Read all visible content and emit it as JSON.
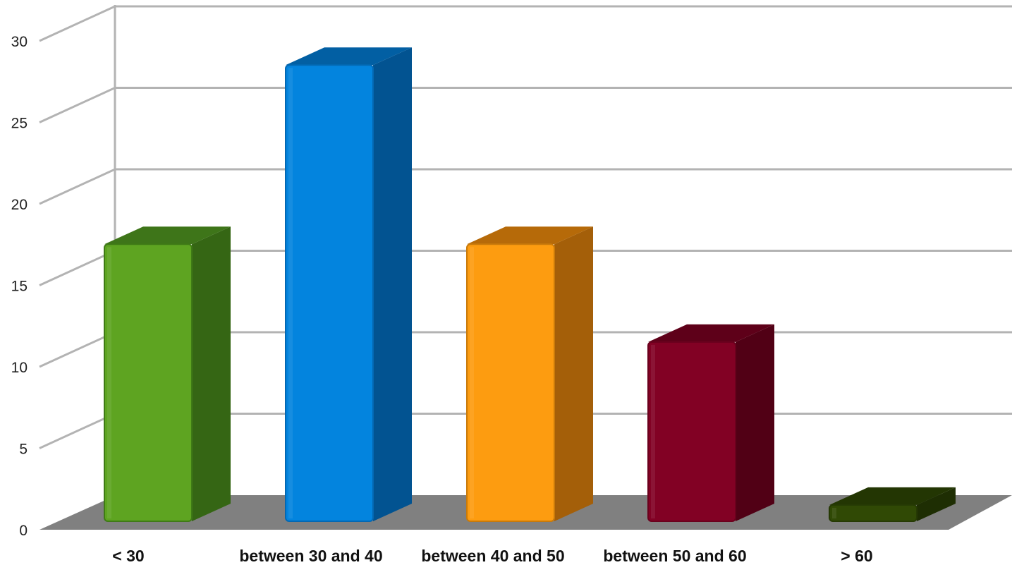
{
  "chart_data": {
    "type": "bar",
    "title": "",
    "xlabel": "",
    "ylabel": "",
    "categories": [
      "< 30",
      "between 30 and 40",
      "between 40 and 50",
      "between 50 and 60",
      "> 60"
    ],
    "values": [
      17,
      28,
      17,
      11,
      1
    ],
    "ylim": [
      0,
      30
    ],
    "yticks": [
      "0",
      "5",
      "10",
      "15",
      "20",
      "25",
      "30"
    ],
    "grid": true,
    "legend": "none",
    "style": "3d-bars",
    "colors": [
      {
        "front": "#5ea421",
        "side": "#356614",
        "top": "#3e7519",
        "edge": "#3f7a16"
      },
      {
        "front": "#0384de",
        "side": "#025391",
        "top": "#025fa3",
        "edge": "#0368b3"
      },
      {
        "front": "#fd9c10",
        "side": "#a45f09",
        "top": "#b66a09",
        "edge": "#c97a0a"
      },
      {
        "front": "#820124",
        "side": "#510015",
        "top": "#5e0019",
        "edge": "#6a011d"
      },
      {
        "front": "#304905",
        "side": "#1e2e03",
        "top": "#233603",
        "edge": "#263a04"
      }
    ],
    "floor_color": "#808080",
    "grid_color": "#b3b3b3"
  }
}
